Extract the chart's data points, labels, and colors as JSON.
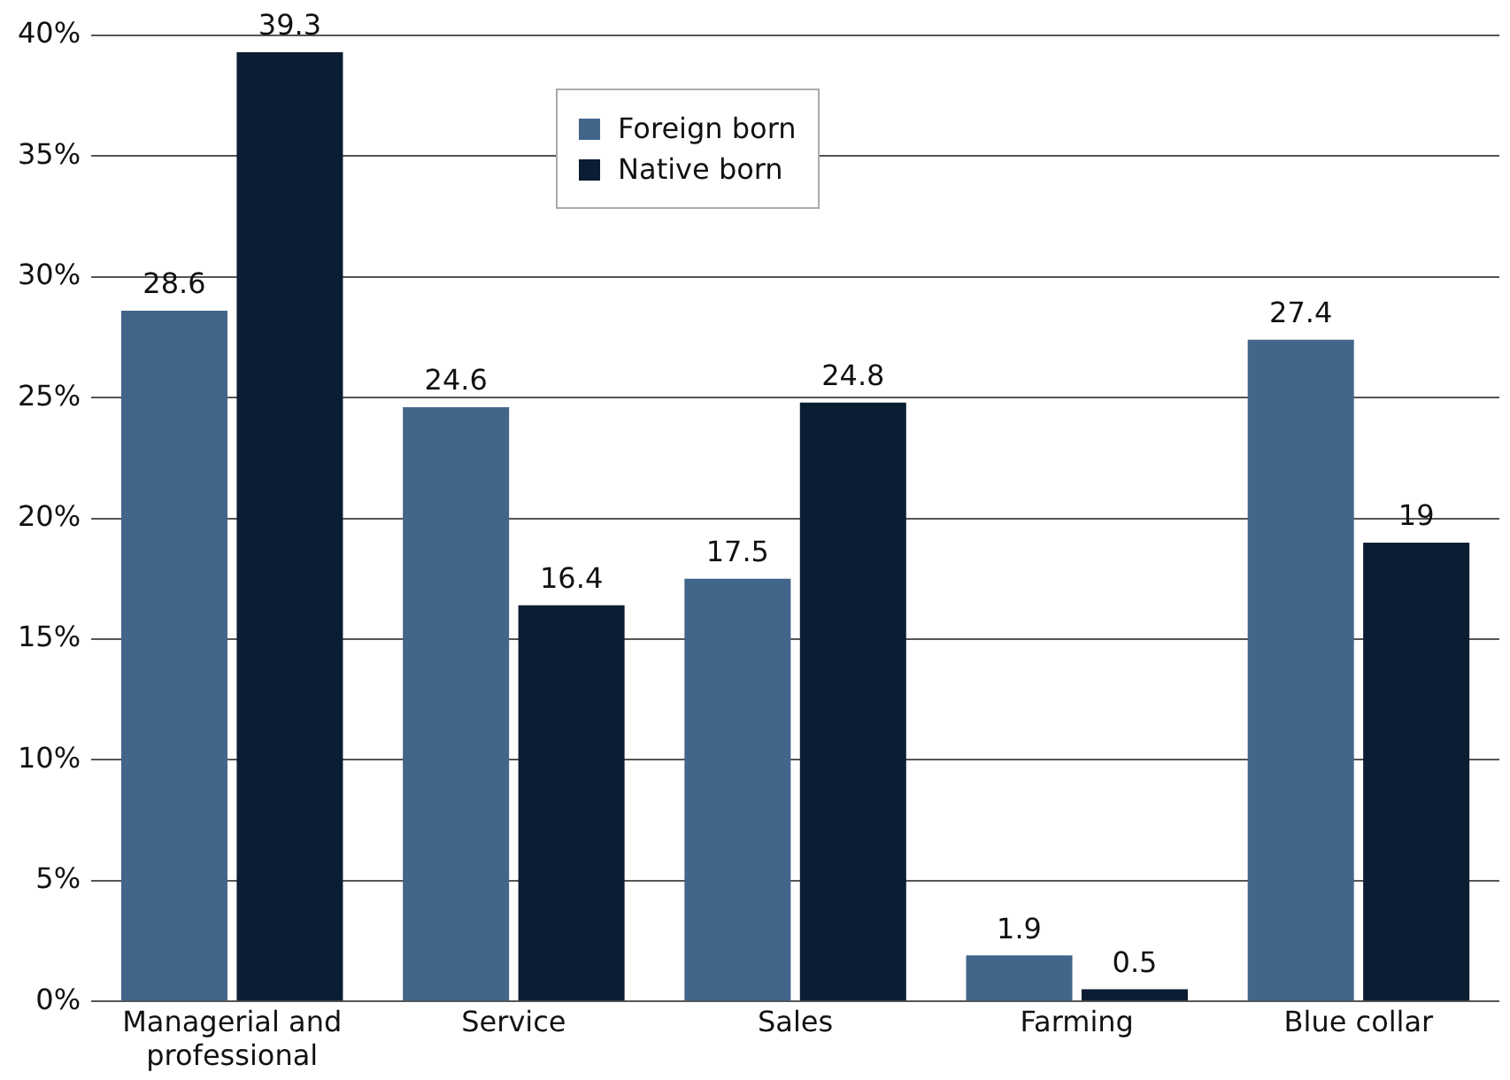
{
  "chart_data": {
    "type": "bar",
    "categories": [
      "Managerial and professional",
      "Service",
      "Sales",
      "Farming",
      "Blue collar"
    ],
    "series": [
      {
        "name": "Foreign born",
        "color": "#42658a",
        "values": [
          28.6,
          24.6,
          17.5,
          1.9,
          27.4
        ]
      },
      {
        "name": "Native born",
        "color": "#0a1d33",
        "values": [
          39.3,
          16.4,
          24.8,
          0.5,
          19
        ]
      }
    ],
    "ylim": [
      0,
      40
    ],
    "yticks": [
      {
        "value": 0,
        "label": "0%"
      },
      {
        "value": 5,
        "label": "5%"
      },
      {
        "value": 10,
        "label": "10%"
      },
      {
        "value": 15,
        "label": "15%"
      },
      {
        "value": 20,
        "label": "20%"
      },
      {
        "value": 25,
        "label": "25%"
      },
      {
        "value": 30,
        "label": "30%"
      },
      {
        "value": 35,
        "label": "35%"
      },
      {
        "value": 40,
        "label": "40%"
      }
    ],
    "grid": "y",
    "legend": "top",
    "data_labels": true
  }
}
